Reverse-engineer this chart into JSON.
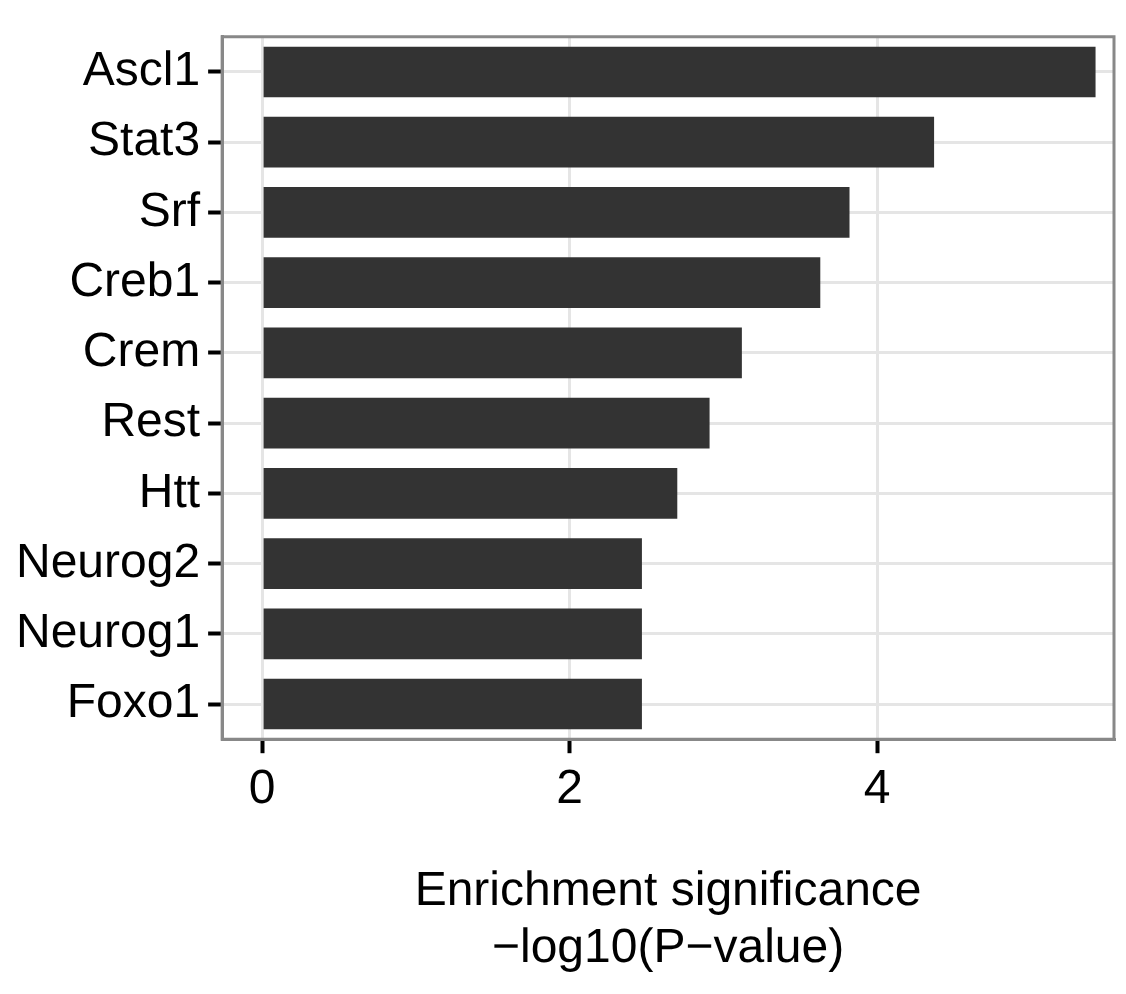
{
  "chart_data": {
    "type": "bar",
    "orientation": "horizontal",
    "categories": [
      "Ascl1",
      "Stat3",
      "Srf",
      "Creb1",
      "Crem",
      "Rest",
      "Htt",
      "Neurog2",
      "Neurog1",
      "Foxo1"
    ],
    "values": [
      5.42,
      4.37,
      3.82,
      3.63,
      3.12,
      2.91,
      2.7,
      2.47,
      2.47,
      2.47
    ],
    "color": "#333333",
    "xlabel": "Enrichment significance\n−log10(P−value)",
    "xlim": [
      -0.26,
      5.54
    ],
    "xticks": [
      0,
      2,
      4
    ],
    "grid": true,
    "legend": false
  }
}
